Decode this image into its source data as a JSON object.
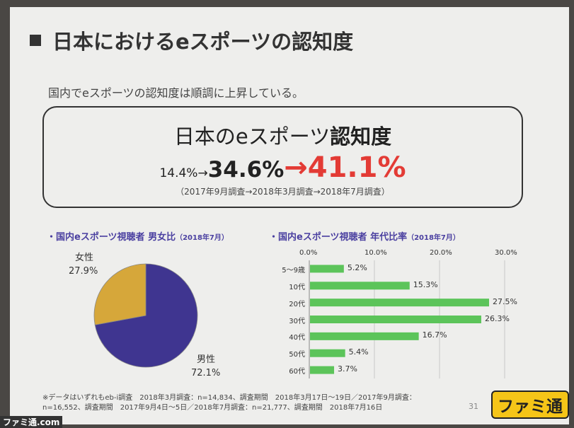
{
  "slide": {
    "title": "日本におけるeスポーツの認知度",
    "subtitle": "国内でeスポーツの認知度は順調に上昇している。",
    "box": {
      "head_normal": "日本のeスポーツ",
      "head_bold": "認知度",
      "val1": "14.4%→",
      "val2": "34.6%",
      "val3": "→41.1%",
      "note": "（2017年9月調査→2018年3月調査→2018年7月調査）"
    },
    "page_number": "31",
    "footnote_line1": "※データはいずれもeb-i調査　2018年3月調査：n=14,834、調査期間　2018年3月17日〜19日／2017年9月調査：",
    "footnote_line2": "n=16,552、調査期間　2017年9月4日〜5日／2018年7月調査：n=21,777、調査期間　2018年7月16日",
    "logo": "ファミ通",
    "watermark": "ファミ通.com"
  },
  "colors": {
    "male": "#3f3590",
    "female": "#d6a73a",
    "bar": "#5cc45a",
    "highlight": "#e33b35",
    "section": "#4a3fa0"
  },
  "chart_data": [
    {
      "type": "pie",
      "title": "・国内eスポーツ視聴者 男女比",
      "title_note": "（2018年7月）",
      "slices": [
        {
          "name": "男性",
          "value": 72.1,
          "label": "72.1%"
        },
        {
          "name": "女性",
          "value": 27.9,
          "label": "27.9%"
        }
      ]
    },
    {
      "type": "bar",
      "orientation": "horizontal",
      "title": "・国内eスポーツ視聴者 年代比率",
      "title_note": "（2018年7月）",
      "categories": [
        "5〜9歳",
        "10代",
        "20代",
        "30代",
        "40代",
        "50代",
        "60代"
      ],
      "values": [
        5.2,
        15.3,
        27.5,
        26.3,
        16.7,
        5.4,
        3.7
      ],
      "value_labels": [
        "5.2%",
        "15.3%",
        "27.5%",
        "26.3%",
        "16.7%",
        "5.4%",
        "3.7%"
      ],
      "xlim": [
        0,
        30
      ],
      "ticks": [
        0,
        10,
        20,
        30
      ],
      "tick_labels": [
        "0.0%",
        "10.0%",
        "20.0%",
        "30.0%"
      ],
      "grid": true
    }
  ]
}
